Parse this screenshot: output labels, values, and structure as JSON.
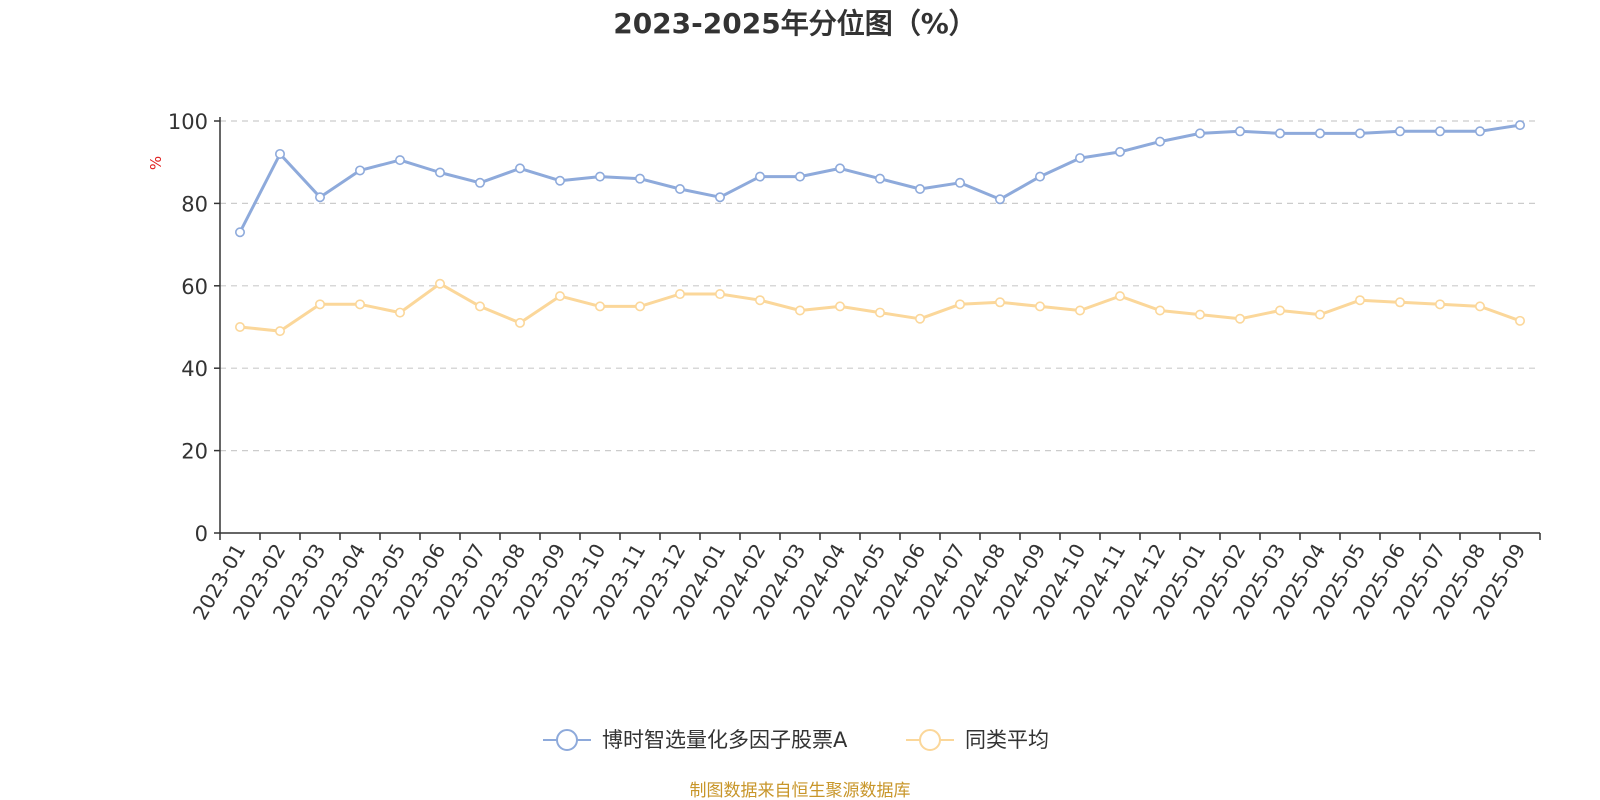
{
  "chart_data": {
    "type": "line",
    "title": "2023-2025年分位图（%）",
    "ylabel": "%",
    "ylim": [
      0,
      100
    ],
    "yticks": [
      0,
      20,
      40,
      60,
      80,
      100
    ],
    "grid": "horizontal dashed",
    "legend_position": "bottom-center",
    "categories": [
      "2023-01",
      "2023-02",
      "2023-03",
      "2023-04",
      "2023-05",
      "2023-06",
      "2023-07",
      "2023-08",
      "2023-09",
      "2023-10",
      "2023-11",
      "2023-12",
      "2024-01",
      "2024-02",
      "2024-03",
      "2024-04",
      "2024-05",
      "2024-06",
      "2024-07",
      "2024-08",
      "2024-09",
      "2024-10",
      "2024-11",
      "2024-12",
      "2025-01",
      "2025-02",
      "2025-03",
      "2025-04",
      "2025-05",
      "2025-06",
      "2025-07",
      "2025-08",
      "2025-09"
    ],
    "series": [
      {
        "name": "博时智选量化多因子股票A",
        "color": "#8eaadb",
        "values": [
          73,
          92,
          81.5,
          88,
          90.5,
          87.5,
          85,
          88.5,
          85.5,
          86.5,
          86,
          83.5,
          81.5,
          86.5,
          86.5,
          88.5,
          86,
          83.5,
          85,
          81,
          86.5,
          91,
          92.5,
          95,
          97,
          97.5,
          97,
          97,
          97,
          97.5,
          97.5,
          97.5,
          99
        ]
      },
      {
        "name": "同类平均",
        "color": "#fbd79a",
        "values": [
          50,
          49,
          55.5,
          55.5,
          53.5,
          60.5,
          55,
          51,
          57.5,
          55,
          55,
          58,
          58,
          56.5,
          54,
          55,
          53.5,
          52,
          55.5,
          56,
          55,
          54,
          57.5,
          54,
          53,
          52,
          54,
          53,
          56.5,
          56,
          55.5,
          55,
          51.5
        ]
      }
    ]
  },
  "source_text": "制图数据来自恒生聚源数据库"
}
